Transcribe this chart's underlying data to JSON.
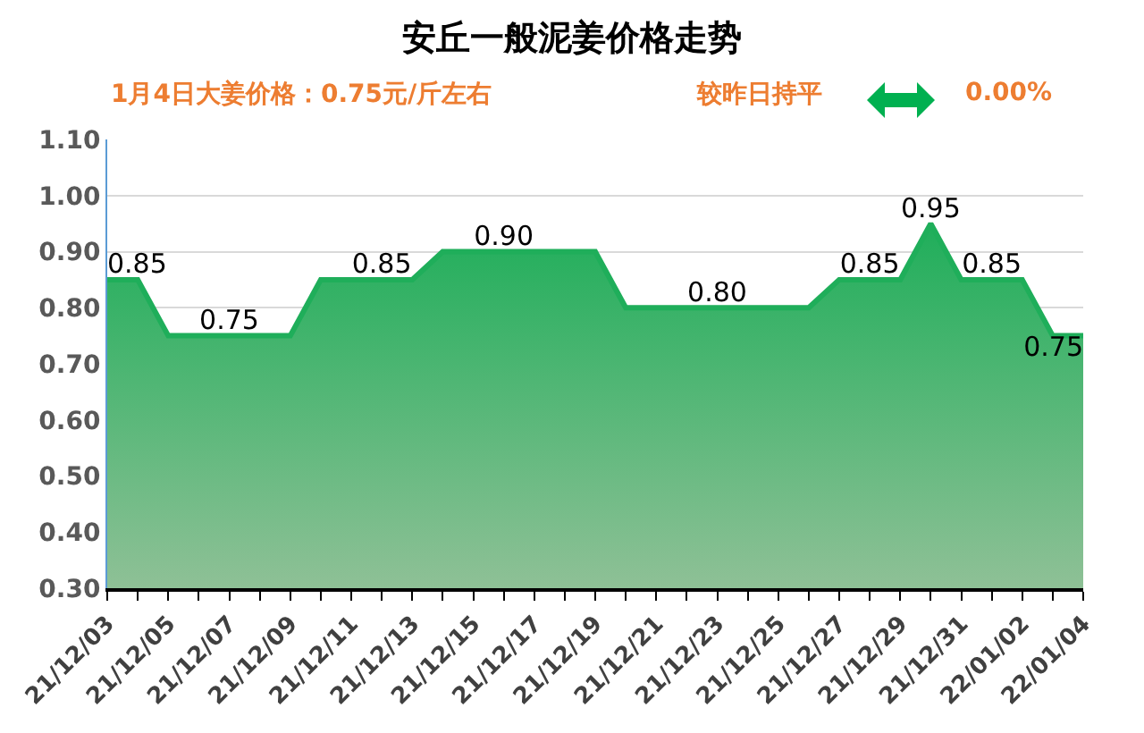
{
  "chart_data": {
    "type": "area",
    "title": "安丘一般泥姜价格走势",
    "annotations": [
      "1月4日大姜价格：0.75元/斤左右",
      "较昨日持平",
      "0.00%"
    ],
    "categories": [
      "21/12/03",
      null,
      "21/12/05",
      null,
      "21/12/07",
      null,
      "21/12/09",
      null,
      "21/12/11",
      null,
      "21/12/13",
      null,
      "21/12/15",
      null,
      "21/12/17",
      null,
      "21/12/19",
      null,
      "21/12/21",
      null,
      "21/12/23",
      null,
      "21/12/25",
      null,
      "21/12/27",
      null,
      "21/12/29",
      null,
      "21/12/31",
      null,
      "22/01/02",
      null,
      "22/01/04"
    ],
    "series": [
      {
        "color": "#1fae5a",
        "values": [
          0.85,
          0.85,
          0.75,
          0.75,
          0.75,
          0.75,
          0.75,
          0.85,
          0.85,
          0.85,
          0.85,
          0.9,
          0.9,
          0.9,
          0.9,
          0.9,
          0.9,
          0.8,
          0.8,
          0.8,
          0.8,
          0.8,
          0.8,
          0.8,
          0.85,
          0.85,
          0.85,
          0.95,
          0.85,
          0.85,
          0.85,
          0.75,
          0.75
        ],
        "value_labels": [
          "0.85",
          null,
          null,
          null,
          "0.75",
          null,
          null,
          null,
          null,
          "0.85",
          null,
          null,
          null,
          "0.90",
          null,
          null,
          null,
          null,
          null,
          null,
          "0.80",
          null,
          null,
          null,
          null,
          "0.85",
          null,
          "0.95",
          null,
          "0.85",
          null,
          null,
          "0.75"
        ]
      }
    ],
    "ylim": [
      0.3,
      1.1
    ],
    "yticks": [
      {
        "value": 0.3,
        "label": "0.30"
      },
      {
        "value": 0.4,
        "label": "0.40"
      },
      {
        "value": 0.5,
        "label": "0.50"
      },
      {
        "value": 0.6,
        "label": "0.60"
      },
      {
        "value": 0.7,
        "label": "0.70"
      },
      {
        "value": 0.8,
        "label": "0.80"
      },
      {
        "value": 0.9,
        "label": "0.90"
      },
      {
        "value": 1.0,
        "label": "1.00"
      },
      {
        "value": 1.1,
        "label": "1.10"
      }
    ],
    "grid": "y",
    "marker": "none",
    "line_style": "solid"
  }
}
